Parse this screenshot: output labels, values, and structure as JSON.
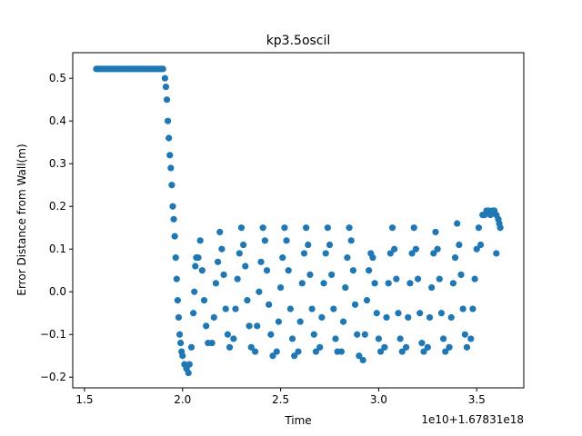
{
  "chart_data": {
    "type": "scatter",
    "title": "kp3.5oscil",
    "xlabel": "Time",
    "ylabel": "Error Distance from Wall(m)",
    "x_offset_label": "1e10+1.67831e18",
    "xlim": [
      1.44,
      3.74
    ],
    "ylim": [
      -0.225,
      0.56
    ],
    "x_ticks": [
      1.5,
      2.0,
      2.5,
      3.0,
      3.5
    ],
    "x_tick_labels": [
      "1.5",
      "2.0",
      "2.5",
      "3.0",
      "3.5"
    ],
    "y_ticks": [
      -0.2,
      -0.1,
      0.0,
      0.1,
      0.2,
      0.3,
      0.4,
      0.5
    ],
    "y_tick_labels": [
      "−0.2",
      "−0.1",
      "0.0",
      "0.1",
      "0.2",
      "0.3",
      "0.4",
      "0.5"
    ],
    "grid": false,
    "marker_color": "#1f77b4",
    "series": [
      {
        "points": [
          [
            1.56,
            0.522
          ],
          [
            1.57,
            0.522
          ],
          [
            1.58,
            0.522
          ],
          [
            1.59,
            0.522
          ],
          [
            1.6,
            0.522
          ],
          [
            1.61,
            0.522
          ],
          [
            1.62,
            0.522
          ],
          [
            1.63,
            0.522
          ],
          [
            1.64,
            0.522
          ],
          [
            1.65,
            0.522
          ],
          [
            1.66,
            0.522
          ],
          [
            1.67,
            0.522
          ],
          [
            1.68,
            0.522
          ],
          [
            1.69,
            0.522
          ],
          [
            1.7,
            0.522
          ],
          [
            1.71,
            0.522
          ],
          [
            1.72,
            0.522
          ],
          [
            1.73,
            0.522
          ],
          [
            1.74,
            0.522
          ],
          [
            1.75,
            0.522
          ],
          [
            1.76,
            0.522
          ],
          [
            1.77,
            0.522
          ],
          [
            1.78,
            0.522
          ],
          [
            1.79,
            0.522
          ],
          [
            1.8,
            0.522
          ],
          [
            1.81,
            0.522
          ],
          [
            1.82,
            0.522
          ],
          [
            1.83,
            0.522
          ],
          [
            1.84,
            0.522
          ],
          [
            1.85,
            0.522
          ],
          [
            1.86,
            0.522
          ],
          [
            1.87,
            0.522
          ],
          [
            1.88,
            0.522
          ],
          [
            1.89,
            0.522
          ],
          [
            1.9,
            0.522
          ],
          [
            1.91,
            0.5
          ],
          [
            1.915,
            0.48
          ],
          [
            1.92,
            0.45
          ],
          [
            1.925,
            0.4
          ],
          [
            1.93,
            0.36
          ],
          [
            1.935,
            0.32
          ],
          [
            1.94,
            0.29
          ],
          [
            1.945,
            0.25
          ],
          [
            1.95,
            0.2
          ],
          [
            1.955,
            0.17
          ],
          [
            1.96,
            0.13
          ],
          [
            1.965,
            0.08
          ],
          [
            1.97,
            0.03
          ],
          [
            1.975,
            -0.02
          ],
          [
            1.98,
            -0.06
          ],
          [
            1.985,
            -0.1
          ],
          [
            1.99,
            -0.12
          ],
          [
            1.995,
            -0.14
          ],
          [
            2.0,
            -0.15
          ],
          [
            2.01,
            -0.17
          ],
          [
            2.02,
            -0.18
          ],
          [
            2.03,
            -0.19
          ],
          [
            2.035,
            -0.17
          ],
          [
            2.045,
            -0.13
          ],
          [
            2.055,
            -0.05
          ],
          [
            2.06,
            0.0
          ],
          [
            2.065,
            0.06
          ],
          [
            2.07,
            0.08
          ],
          [
            2.08,
            0.08
          ],
          [
            2.09,
            0.12
          ],
          [
            2.1,
            0.05
          ],
          [
            2.11,
            -0.02
          ],
          [
            2.12,
            -0.08
          ],
          [
            2.13,
            -0.12
          ],
          [
            2.15,
            -0.12
          ],
          [
            2.16,
            -0.06
          ],
          [
            2.17,
            0.02
          ],
          [
            2.18,
            0.07
          ],
          [
            2.19,
            0.14
          ],
          [
            2.2,
            0.1
          ],
          [
            2.21,
            0.04
          ],
          [
            2.22,
            -0.04
          ],
          [
            2.23,
            -0.1
          ],
          [
            2.24,
            -0.13
          ],
          [
            2.26,
            -0.11
          ],
          [
            2.27,
            -0.04
          ],
          [
            2.28,
            0.03
          ],
          [
            2.29,
            0.09
          ],
          [
            2.3,
            0.15
          ],
          [
            2.31,
            0.11
          ],
          [
            2.32,
            0.06
          ],
          [
            2.33,
            -0.02
          ],
          [
            2.34,
            -0.08
          ],
          [
            2.35,
            -0.13
          ],
          [
            2.37,
            -0.14
          ],
          [
            2.38,
            -0.08
          ],
          [
            2.39,
            0.0
          ],
          [
            2.4,
            0.07
          ],
          [
            2.41,
            0.15
          ],
          [
            2.42,
            0.12
          ],
          [
            2.43,
            0.05
          ],
          [
            2.44,
            -0.03
          ],
          [
            2.45,
            -0.1
          ],
          [
            2.46,
            -0.15
          ],
          [
            2.48,
            -0.14
          ],
          [
            2.49,
            -0.07
          ],
          [
            2.5,
            0.01
          ],
          [
            2.51,
            0.08
          ],
          [
            2.52,
            0.15
          ],
          [
            2.53,
            0.12
          ],
          [
            2.54,
            0.05
          ],
          [
            2.55,
            -0.04
          ],
          [
            2.56,
            -0.11
          ],
          [
            2.57,
            -0.15
          ],
          [
            2.59,
            -0.14
          ],
          [
            2.6,
            -0.07
          ],
          [
            2.61,
            0.02
          ],
          [
            2.62,
            0.09
          ],
          [
            2.63,
            0.15
          ],
          [
            2.64,
            0.11
          ],
          [
            2.65,
            0.04
          ],
          [
            2.66,
            -0.04
          ],
          [
            2.67,
            -0.1
          ],
          [
            2.68,
            -0.14
          ],
          [
            2.7,
            -0.13
          ],
          [
            2.71,
            -0.06
          ],
          [
            2.72,
            0.02
          ],
          [
            2.73,
            0.09
          ],
          [
            2.74,
            0.15
          ],
          [
            2.75,
            0.11
          ],
          [
            2.76,
            0.04
          ],
          [
            2.77,
            -0.04
          ],
          [
            2.78,
            -0.11
          ],
          [
            2.79,
            -0.14
          ],
          [
            2.81,
            -0.14
          ],
          [
            2.82,
            -0.07
          ],
          [
            2.83,
            0.01
          ],
          [
            2.84,
            0.08
          ],
          [
            2.85,
            0.15
          ],
          [
            2.86,
            0.12
          ],
          [
            2.87,
            0.05
          ],
          [
            2.88,
            -0.03
          ],
          [
            2.89,
            -0.1
          ],
          [
            2.9,
            -0.15
          ],
          [
            2.92,
            -0.16
          ],
          [
            2.93,
            -0.1
          ],
          [
            2.94,
            -0.02
          ],
          [
            2.95,
            0.05
          ],
          [
            2.96,
            0.09
          ],
          [
            2.97,
            0.08
          ],
          [
            2.98,
            0.02
          ],
          [
            2.99,
            -0.05
          ],
          [
            3.0,
            -0.11
          ],
          [
            3.01,
            -0.14
          ],
          [
            3.03,
            -0.13
          ],
          [
            3.04,
            -0.06
          ],
          [
            3.05,
            0.02
          ],
          [
            3.06,
            0.09
          ],
          [
            3.07,
            0.15
          ],
          [
            3.08,
            0.1
          ],
          [
            3.09,
            0.03
          ],
          [
            3.1,
            -0.05
          ],
          [
            3.11,
            -0.11
          ],
          [
            3.12,
            -0.14
          ],
          [
            3.14,
            -0.13
          ],
          [
            3.15,
            -0.06
          ],
          [
            3.16,
            0.02
          ],
          [
            3.17,
            0.09
          ],
          [
            3.18,
            0.15
          ],
          [
            3.19,
            0.1
          ],
          [
            3.2,
            0.03
          ],
          [
            3.21,
            -0.05
          ],
          [
            3.22,
            -0.12
          ],
          [
            3.23,
            -0.14
          ],
          [
            3.25,
            -0.13
          ],
          [
            3.26,
            -0.06
          ],
          [
            3.27,
            0.01
          ],
          [
            3.28,
            0.09
          ],
          [
            3.29,
            0.14
          ],
          [
            3.3,
            0.1
          ],
          [
            3.31,
            0.03
          ],
          [
            3.32,
            -0.05
          ],
          [
            3.33,
            -0.11
          ],
          [
            3.34,
            -0.14
          ],
          [
            3.36,
            -0.13
          ],
          [
            3.37,
            -0.06
          ],
          [
            3.38,
            0.02
          ],
          [
            3.39,
            0.08
          ],
          [
            3.4,
            0.16
          ],
          [
            3.41,
            0.11
          ],
          [
            3.42,
            0.04
          ],
          [
            3.43,
            -0.04
          ],
          [
            3.44,
            -0.1
          ],
          [
            3.45,
            -0.13
          ],
          [
            3.47,
            -0.11
          ],
          [
            3.48,
            -0.04
          ],
          [
            3.49,
            0.03
          ],
          [
            3.5,
            0.1
          ],
          [
            3.51,
            0.15
          ],
          [
            3.52,
            0.11
          ],
          [
            3.53,
            0.18
          ],
          [
            3.54,
            0.18
          ],
          [
            3.55,
            0.19
          ],
          [
            3.56,
            0.19
          ],
          [
            3.57,
            0.18
          ],
          [
            3.58,
            0.19
          ],
          [
            3.59,
            0.19
          ],
          [
            3.6,
            0.18
          ],
          [
            3.61,
            0.17
          ],
          [
            3.615,
            0.16
          ],
          [
            3.62,
            0.15
          ],
          [
            3.6,
            0.09
          ]
        ]
      }
    ]
  }
}
